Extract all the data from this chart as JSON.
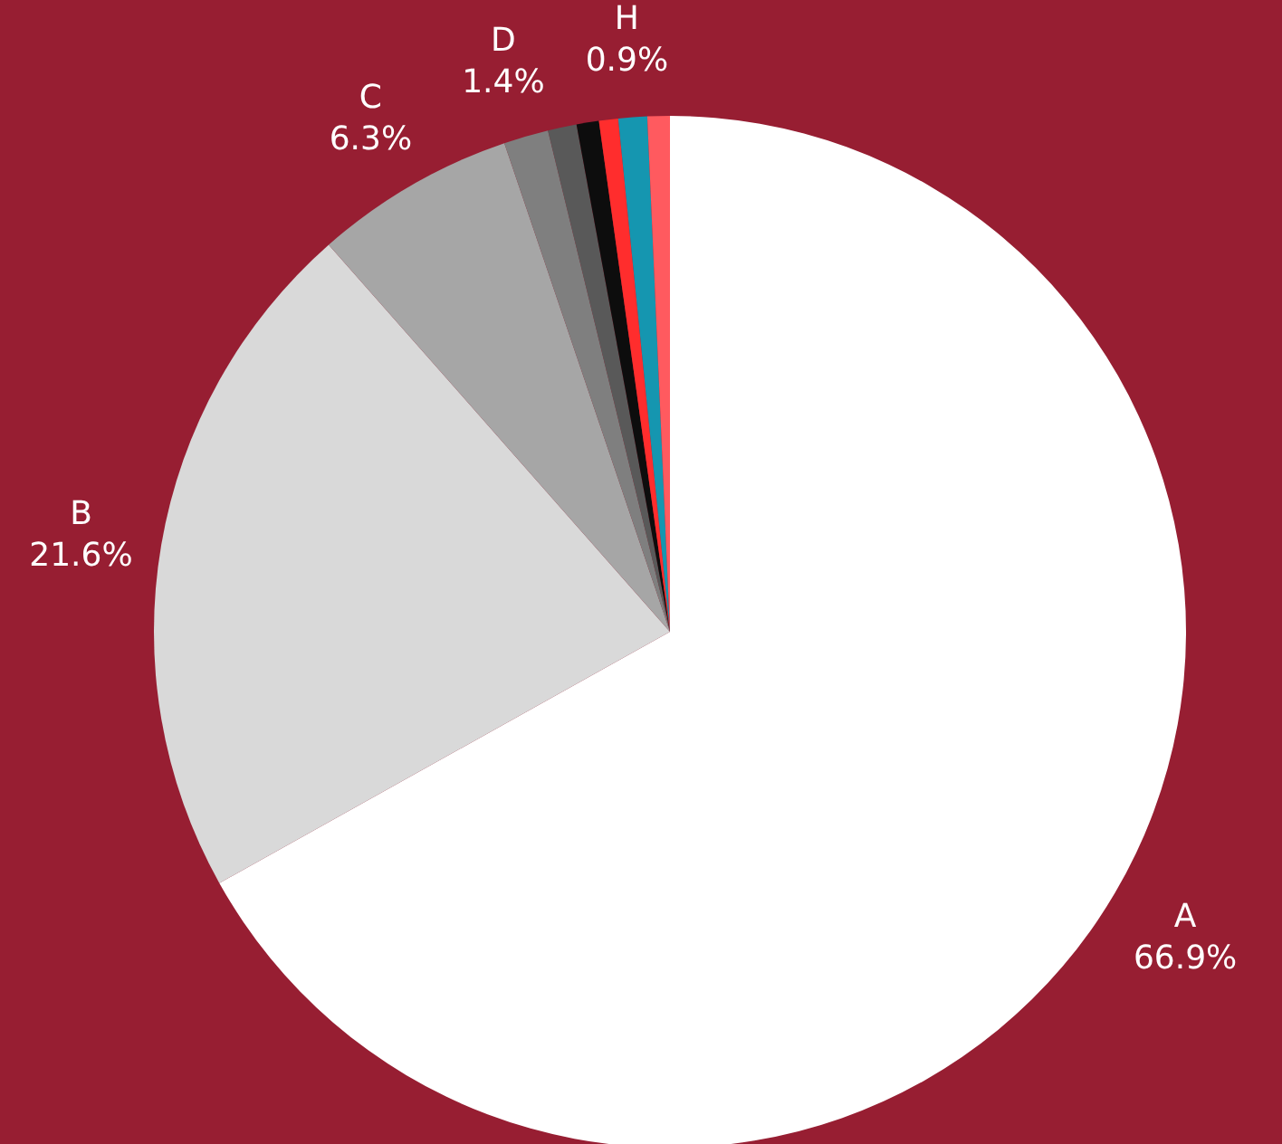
{
  "chart_data": {
    "type": "pie",
    "categories": [
      "A",
      "B",
      "C",
      "D",
      null,
      null,
      null,
      "H",
      null
    ],
    "values": [
      66.9,
      21.6,
      6.3,
      1.4,
      0.9,
      0.7,
      0.6,
      0.9,
      0.7
    ],
    "colors": [
      "#ffffff",
      "#d9d9d9",
      "#a6a6a6",
      "#7f7f7f",
      "#595959",
      "#0d0d0d",
      "#ff2d2d",
      "#1596b0",
      "#ff5a5f"
    ],
    "value_labels": [
      "66.9%",
      "21.6%",
      "6.3%",
      "1.4%",
      null,
      null,
      null,
      "0.9%",
      null
    ]
  }
}
